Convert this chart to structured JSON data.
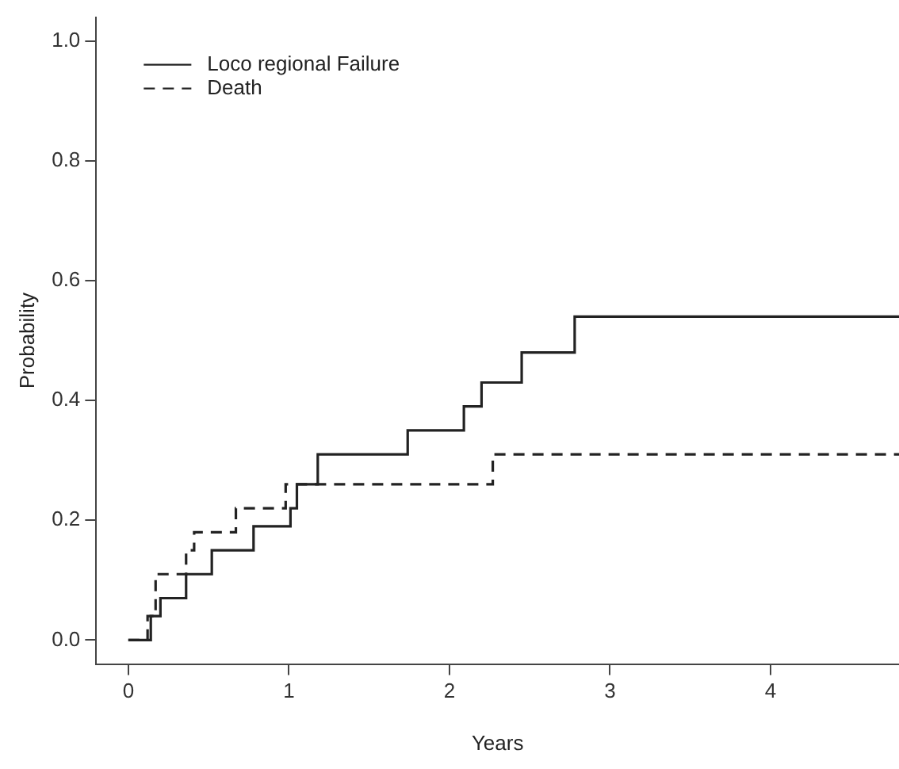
{
  "chart_data": {
    "type": "step",
    "xlabel": "Years",
    "ylabel": "Probability",
    "xlim": [
      -0.2,
      4.8
    ],
    "xticks": [
      0,
      1,
      2,
      3,
      4
    ],
    "ylim": [
      -0.04,
      1.04
    ],
    "yticks": [
      {
        "value": 0,
        "label": "0.0"
      },
      0.2,
      0.4,
      0.6,
      0.8,
      {
        "value": 1,
        "label": "1.0"
      }
    ],
    "grid": false,
    "legend": "top left",
    "marker": "none",
    "series": [
      {
        "name": "Loco regional Failure",
        "color": "#222222",
        "line_style": "solid",
        "x": [
          0,
          0.14,
          0.2,
          0.36,
          0.52,
          0.78,
          1.01,
          1.05,
          1.18,
          1.74,
          2.09,
          2.2,
          2.45,
          2.78,
          4.8
        ],
        "values": [
          0,
          0.04,
          0.07,
          0.11,
          0.15,
          0.19,
          0.22,
          0.26,
          0.31,
          0.35,
          0.39,
          0.43,
          0.48,
          0.54,
          0.54
        ]
      },
      {
        "name": "Death",
        "color": "#222222",
        "line_style": "dashed",
        "x": [
          0,
          0.12,
          0.17,
          0.36,
          0.41,
          0.67,
          0.98,
          2.27,
          4.8
        ],
        "values": [
          0,
          0.04,
          0.11,
          0.15,
          0.18,
          0.22,
          0.26,
          0.31,
          0.31
        ]
      }
    ]
  }
}
